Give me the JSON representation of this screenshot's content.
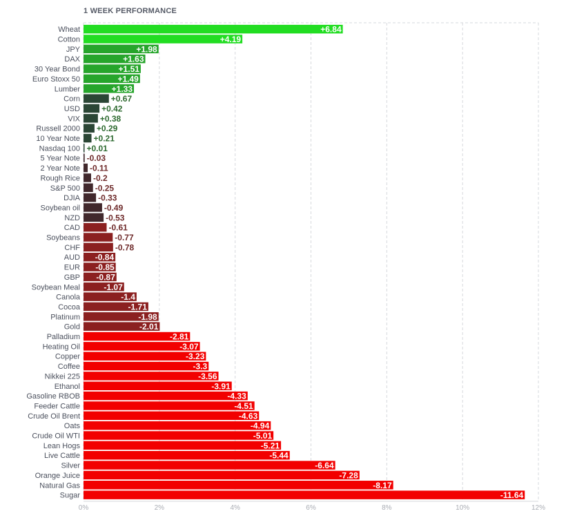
{
  "chart_data": {
    "type": "bar",
    "orientation": "horizontal",
    "title": "1 WEEK PERFORMANCE",
    "xlabel": "",
    "ylabel": "",
    "xlim": [
      0,
      12
    ],
    "x_ticks": [
      "0%",
      "2%",
      "4%",
      "6%",
      "8%",
      "10%",
      "12%"
    ],
    "grid": true,
    "categories": [
      "Wheat",
      "Cotton",
      "JPY",
      "DAX",
      "30 Year Bond",
      "Euro Stoxx 50",
      "Lumber",
      "Corn",
      "USD",
      "VIX",
      "Russell 2000",
      "10 Year Note",
      "Nasdaq 100",
      "5 Year Note",
      "2 Year Note",
      "Rough Rice",
      "S&P 500",
      "DJIA",
      "Soybean oil",
      "NZD",
      "CAD",
      "Soybeans",
      "CHF",
      "AUD",
      "EUR",
      "GBP",
      "Soybean Meal",
      "Canola",
      "Cocoa",
      "Platinum",
      "Gold",
      "Palladium",
      "Heating Oil",
      "Copper",
      "Coffee",
      "Nikkei 225",
      "Ethanol",
      "Gasoline RBOB",
      "Feeder Cattle",
      "Crude Oil Brent",
      "Oats",
      "Crude Oil WTI",
      "Lean Hogs",
      "Live Cattle",
      "Silver",
      "Orange Juice",
      "Natural Gas",
      "Sugar"
    ],
    "values": [
      6.84,
      4.19,
      1.98,
      1.63,
      1.51,
      1.49,
      1.33,
      0.67,
      0.42,
      0.38,
      0.29,
      0.21,
      0.01,
      -0.03,
      -0.11,
      -0.2,
      -0.25,
      -0.33,
      -0.49,
      -0.53,
      -0.61,
      -0.77,
      -0.78,
      -0.84,
      -0.85,
      -0.87,
      -1.07,
      -1.4,
      -1.71,
      -1.98,
      -2.01,
      -2.81,
      -3.07,
      -3.23,
      -3.3,
      -3.56,
      -3.91,
      -4.33,
      -4.51,
      -4.63,
      -4.94,
      -5.01,
      -5.21,
      -5.44,
      -6.64,
      -7.28,
      -8.17,
      -11.64
    ],
    "value_labels": [
      "+6.84",
      "+4.19",
      "+1.98",
      "+1.63",
      "+1.51",
      "+1.49",
      "+1.33",
      "+0.67",
      "+0.42",
      "+0.38",
      "+0.29",
      "+0.21",
      "+0.01",
      "-0.03",
      "-0.11",
      "-0.2",
      "-0.25",
      "-0.33",
      "-0.49",
      "-0.53",
      "-0.61",
      "-0.77",
      "-0.78",
      "-0.84",
      "-0.85",
      "-0.87",
      "-1.07",
      "-1.4",
      "-1.71",
      "-1.98",
      "-2.01",
      "-2.81",
      "-3.07",
      "-3.23",
      "-3.3",
      "-3.56",
      "-3.91",
      "-4.33",
      "-4.51",
      "-4.63",
      "-4.94",
      "-5.01",
      "-5.21",
      "-5.44",
      "-6.64",
      "-7.28",
      "-8.17",
      "-11.64"
    ],
    "colors": {
      "strong_positive": "#22dd22",
      "positive": "#26a52b",
      "weak_positive": "#2b4635",
      "weak_negative": "#41282c",
      "negative": "#8b2020",
      "strong_negative": "#f20000",
      "grid": "#d6d8dc",
      "label_dark_positive": "#2e6a30",
      "label_dark_negative": "#6e2a2a"
    }
  }
}
